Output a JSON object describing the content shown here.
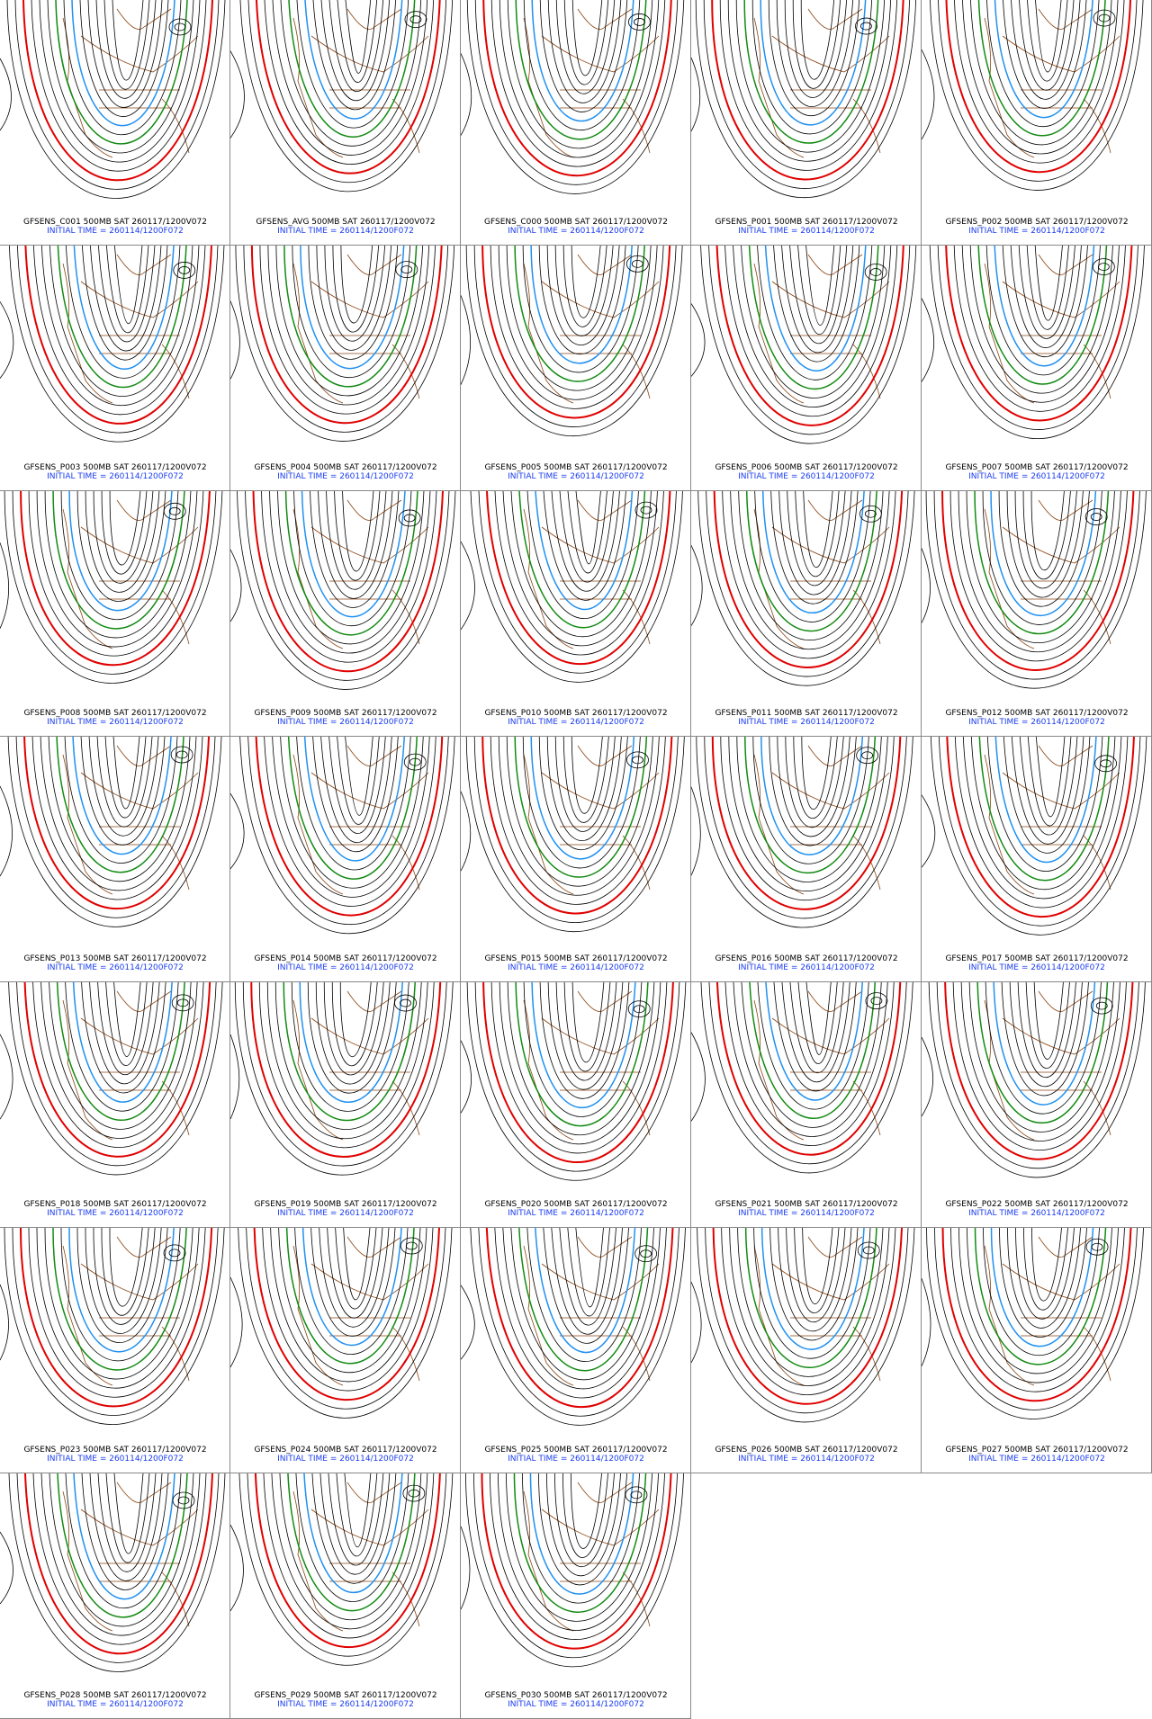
{
  "panels": [
    {
      "line1": "GFSENS_C001 500MB SAT 260117/1200V072",
      "line2": "INITIAL TIME = 260114/1200F072"
    },
    {
      "line1": "GFSENS_AVG 500MB SAT 260117/1200V072",
      "line2": "INITIAL TIME = 260114/1200F072"
    },
    {
      "line1": "GFSENS_C000 500MB SAT 260117/1200V072",
      "line2": "INITIAL TIME = 260114/1200F072"
    },
    {
      "line1": "GFSENS_P001 500MB SAT 260117/1200V072",
      "line2": "INITIAL TIME = 260114/1200F072"
    },
    {
      "line1": "GFSENS_P002 500MB SAT 260117/1200V072",
      "line2": "INITIAL TIME = 260114/1200F072"
    },
    {
      "line1": "GFSENS_P003 500MB SAT 260117/1200V072",
      "line2": "INITIAL TIME = 260114/1200F072"
    },
    {
      "line1": "GFSENS_P004 500MB SAT 260117/1200V072",
      "line2": "INITIAL TIME = 260114/1200F072"
    },
    {
      "line1": "GFSENS_P005 500MB SAT 260117/1200V072",
      "line2": "INITIAL TIME = 260114/1200F072"
    },
    {
      "line1": "GFSENS_P006 500MB SAT 260117/1200V072",
      "line2": "INITIAL TIME = 260114/1200F072"
    },
    {
      "line1": "GFSENS_P007 500MB SAT 260117/1200V072",
      "line2": "INITIAL TIME = 260114/1200F072"
    },
    {
      "line1": "GFSENS_P008 500MB SAT 260117/1200V072",
      "line2": "INITIAL TIME = 260114/1200F072"
    },
    {
      "line1": "GFSENS_P009 500MB SAT 260117/1200V072",
      "line2": "INITIAL TIME = 260114/1200F072"
    },
    {
      "line1": "GFSENS_P010 500MB SAT 260117/1200V072",
      "line2": "INITIAL TIME = 260114/1200F072"
    },
    {
      "line1": "GFSENS_P011 500MB SAT 260117/1200V072",
      "line2": "INITIAL TIME = 260114/1200F072"
    },
    {
      "line1": "GFSENS_P012 500MB SAT 260117/1200V072",
      "line2": "INITIAL TIME = 260114/1200F072"
    },
    {
      "line1": "GFSENS_P013 500MB SAT 260117/1200V072",
      "line2": "INITIAL TIME = 260114/1200F072"
    },
    {
      "line1": "GFSENS_P014 500MB SAT 260117/1200V072",
      "line2": "INITIAL TIME = 260114/1200F072"
    },
    {
      "line1": "GFSENS_P015 500MB SAT 260117/1200V072",
      "line2": "INITIAL TIME = 260114/1200F072"
    },
    {
      "line1": "GFSENS_P016 500MB SAT 260117/1200V072",
      "line2": "INITIAL TIME = 260114/1200F072"
    },
    {
      "line1": "GFSENS_P017 500MB SAT 260117/1200V072",
      "line2": "INITIAL TIME = 260114/1200F072"
    },
    {
      "line1": "GFSENS_P018 500MB SAT 260117/1200V072",
      "line2": "INITIAL TIME = 260114/1200F072"
    },
    {
      "line1": "GFSENS_P019 500MB SAT 260117/1200V072",
      "line2": "INITIAL TIME = 260114/1200F072"
    },
    {
      "line1": "GFSENS_P020 500MB SAT 260117/1200V072",
      "line2": "INITIAL TIME = 260114/1200F072"
    },
    {
      "line1": "GFSENS_P021 500MB SAT 260117/1200V072",
      "line2": "INITIAL TIME = 260114/1200F072"
    },
    {
      "line1": "GFSENS_P022 500MB SAT 260117/1200V072",
      "line2": "INITIAL TIME = 260114/1200F072"
    },
    {
      "line1": "GFSENS_P023 500MB SAT 260117/1200V072",
      "line2": "INITIAL TIME = 260114/1200F072"
    },
    {
      "line1": "GFSENS_P024 500MB SAT 260117/1200V072",
      "line2": "INITIAL TIME = 260114/1200F072"
    },
    {
      "line1": "GFSENS_P025 500MB SAT 260117/1200V072",
      "line2": "INITIAL TIME = 260114/1200F072"
    },
    {
      "line1": "GFSENS_P026 500MB SAT 260117/1200V072",
      "line2": "INITIAL TIME = 260114/1200F072"
    },
    {
      "line1": "GFSENS_P027 500MB SAT 260117/1200V072",
      "line2": "INITIAL TIME = 260114/1200F072"
    },
    {
      "line1": "GFSENS_P028 500MB SAT 260117/1200V072",
      "line2": "INITIAL TIME = 260114/1200F072"
    },
    {
      "line1": "GFSENS_P029 500MB SAT 260117/1200V072",
      "line2": "INITIAL TIME = 260114/1200F072"
    },
    {
      "line1": "GFSENS_P030 500MB SAT 260117/1200V072",
      "line2": "INITIAL TIME = 260114/1200F072"
    }
  ]
}
